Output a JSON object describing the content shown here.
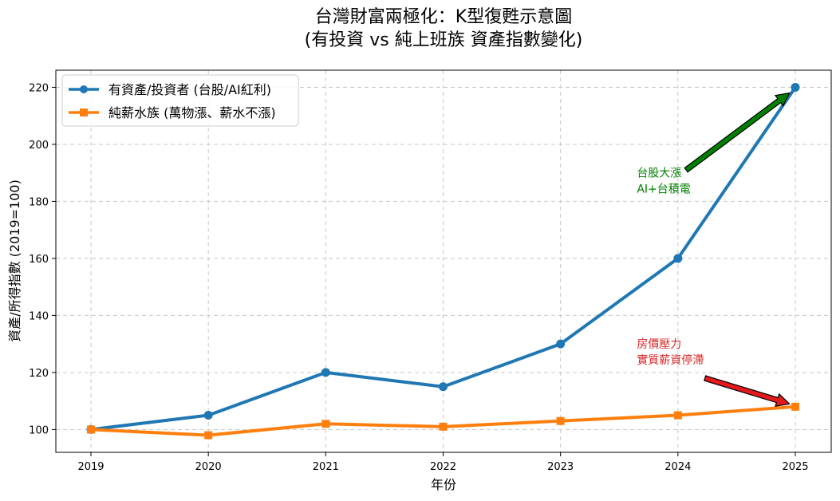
{
  "chart_data": {
    "type": "line",
    "title_line1": "台灣財富兩極化：K型復甦示意圖",
    "title_line2": "(有投資 vs 純上班族 資產指數變化)",
    "xlabel": "年份",
    "ylabel": "資產/所得指數 (2019=100)",
    "x": [
      "2019",
      "2020",
      "2021",
      "2022",
      "2023",
      "2024",
      "2025"
    ],
    "y_ticks": [
      "100",
      "120",
      "140",
      "160",
      "180",
      "200",
      "220"
    ],
    "ylim": [
      92,
      226
    ],
    "grid": true,
    "legend_position": "top-left",
    "series": [
      {
        "name": "有資產/投資者 (台股/AI紅利)",
        "values": [
          100,
          105,
          120,
          115,
          130,
          160,
          220
        ],
        "color": "#1f77b4",
        "marker": "circle"
      },
      {
        "name": "純薪水族 (萬物漲、薪水不漲)",
        "values": [
          100,
          98,
          102,
          101,
          103,
          105,
          108
        ],
        "color": "#ff7f0e",
        "marker": "square"
      }
    ],
    "annotations": [
      {
        "line1": "台股大漲",
        "line2": "AI+台積電",
        "color": "#008000",
        "arrow_color": "#008000",
        "text_x": 2023.65,
        "text_y": 183,
        "tail_x": 2024.07,
        "tail_y": 191,
        "target_x": 2024.95,
        "target_y": 218
      },
      {
        "line1": "房價壓力",
        "line2": "實質薪資停滯",
        "color": "#d62728",
        "arrow_color": "#e31a1c",
        "text_x": 2023.65,
        "text_y": 123,
        "tail_x": 2024.23,
        "tail_y": 118,
        "target_x": 2024.95,
        "target_y": 109
      }
    ]
  }
}
